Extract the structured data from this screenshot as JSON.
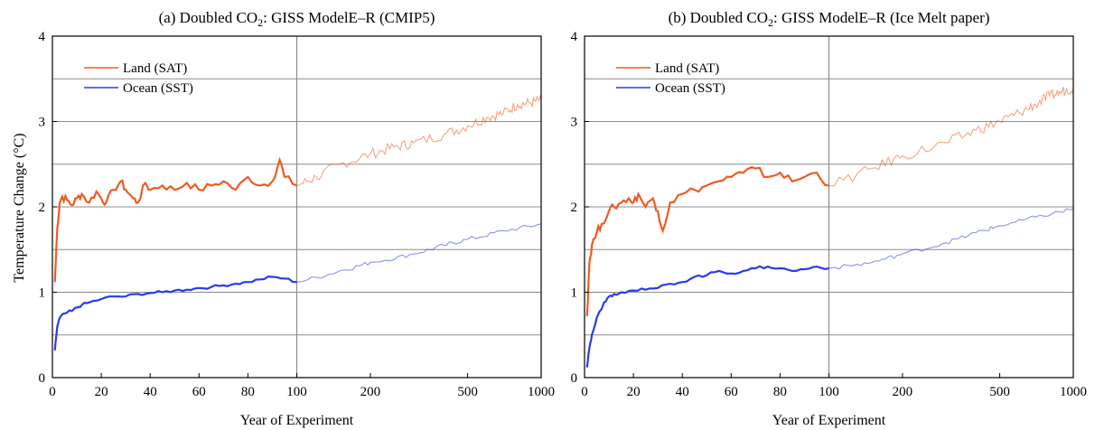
{
  "figure": {
    "ylabel": "Temperature Change (°C)"
  },
  "chart_data": [
    {
      "type": "line",
      "title_prefix": "(a)  Doubled CO",
      "title_sub": "2",
      "title_suffix": ": GISS ModelE–R (CMIP5)",
      "xlabel": "Year of Experiment",
      "ylabel": "Temperature Change (°C)",
      "x_scale": "linear 0–100, logarithmic 100–1000",
      "xticks": [
        "0",
        "20",
        "40",
        "60",
        "80",
        "100",
        "200",
        "500",
        "1000"
      ],
      "ylim": [
        0,
        4
      ],
      "yticks": [
        "0",
        "1",
        "2",
        "3",
        "4"
      ],
      "grid": true,
      "legend_position": "top-left",
      "series": [
        {
          "name": "Land (SAT)",
          "color": "#f05a22",
          "x": [
            1,
            2,
            3,
            4,
            6,
            8,
            10,
            12,
            15,
            18,
            20,
            22,
            25,
            28,
            30,
            33,
            35,
            38,
            40,
            45,
            50,
            55,
            60,
            65,
            70,
            75,
            80,
            85,
            90,
            93,
            95,
            100,
            120,
            150,
            200,
            250,
            300,
            400,
            500,
            600,
            700,
            800,
            900,
            1000
          ],
          "y": [
            1.12,
            1.75,
            2.05,
            2.12,
            2.08,
            2.02,
            2.1,
            2.15,
            2.05,
            2.18,
            2.1,
            2.05,
            2.2,
            2.3,
            2.2,
            2.1,
            2.05,
            2.28,
            2.2,
            2.25,
            2.2,
            2.28,
            2.2,
            2.25,
            2.3,
            2.2,
            2.35,
            2.25,
            2.3,
            2.55,
            2.35,
            2.25,
            2.35,
            2.5,
            2.62,
            2.7,
            2.75,
            2.85,
            2.95,
            3.05,
            3.1,
            3.2,
            3.22,
            3.25
          ]
        },
        {
          "name": "Ocean (SST)",
          "color": "#2b3be8",
          "x": [
            1,
            2,
            3,
            5,
            8,
            10,
            12,
            15,
            20,
            25,
            30,
            35,
            40,
            45,
            50,
            55,
            60,
            65,
            70,
            75,
            80,
            85,
            90,
            95,
            100,
            150,
            200,
            300,
            400,
            500,
            700,
            1000
          ],
          "y": [
            0.32,
            0.6,
            0.7,
            0.75,
            0.78,
            0.82,
            0.85,
            0.88,
            0.92,
            0.95,
            0.95,
            0.98,
            0.99,
            1.0,
            1.02,
            1.03,
            1.05,
            1.06,
            1.08,
            1.1,
            1.12,
            1.15,
            1.18,
            1.16,
            1.12,
            1.25,
            1.35,
            1.45,
            1.55,
            1.62,
            1.72,
            1.8
          ]
        }
      ]
    },
    {
      "type": "line",
      "title_prefix": "(b)  Doubled CO",
      "title_sub": "2",
      "title_suffix": ": GISS ModelE–R (Ice Melt paper)",
      "xlabel": "Year of Experiment",
      "ylabel": "Temperature Change (°C)",
      "x_scale": "linear 0–100, logarithmic 100–1000",
      "xticks": [
        "0",
        "20",
        "40",
        "60",
        "80",
        "100",
        "200",
        "500",
        "1000"
      ],
      "ylim": [
        0,
        4
      ],
      "yticks": [
        "0",
        "1",
        "2",
        "3",
        "4"
      ],
      "grid": true,
      "legend_position": "top-left",
      "series": [
        {
          "name": "Land (SAT)",
          "color": "#f05a22",
          "x": [
            1,
            2,
            3,
            5,
            7,
            10,
            12,
            15,
            18,
            20,
            22,
            25,
            28,
            30,
            32,
            35,
            40,
            45,
            50,
            55,
            60,
            65,
            70,
            75,
            80,
            85,
            90,
            95,
            100,
            150,
            200,
            300,
            400,
            500,
            600,
            700,
            800,
            900,
            1000
          ],
          "y": [
            0.72,
            1.35,
            1.55,
            1.7,
            1.8,
            1.95,
            2.0,
            2.05,
            2.1,
            2.05,
            2.15,
            2.0,
            2.1,
            1.95,
            1.72,
            2.05,
            2.15,
            2.2,
            2.25,
            2.3,
            2.35,
            2.4,
            2.45,
            2.35,
            2.4,
            2.3,
            2.35,
            2.4,
            2.25,
            2.45,
            2.6,
            2.75,
            2.9,
            3.0,
            3.1,
            3.2,
            3.3,
            3.35,
            3.4
          ]
        },
        {
          "name": "Ocean (SST)",
          "color": "#2b3be8",
          "x": [
            1,
            2,
            3,
            5,
            8,
            10,
            12,
            15,
            20,
            25,
            30,
            35,
            40,
            45,
            50,
            55,
            60,
            65,
            70,
            75,
            80,
            85,
            90,
            95,
            100,
            150,
            200,
            300,
            400,
            500,
            700,
            1000
          ],
          "y": [
            0.12,
            0.35,
            0.5,
            0.7,
            0.88,
            0.95,
            0.98,
            1.0,
            1.02,
            1.03,
            1.05,
            1.1,
            1.12,
            1.18,
            1.2,
            1.25,
            1.22,
            1.25,
            1.28,
            1.3,
            1.28,
            1.25,
            1.27,
            1.3,
            1.28,
            1.35,
            1.45,
            1.58,
            1.7,
            1.78,
            1.88,
            1.98
          ]
        }
      ]
    }
  ]
}
